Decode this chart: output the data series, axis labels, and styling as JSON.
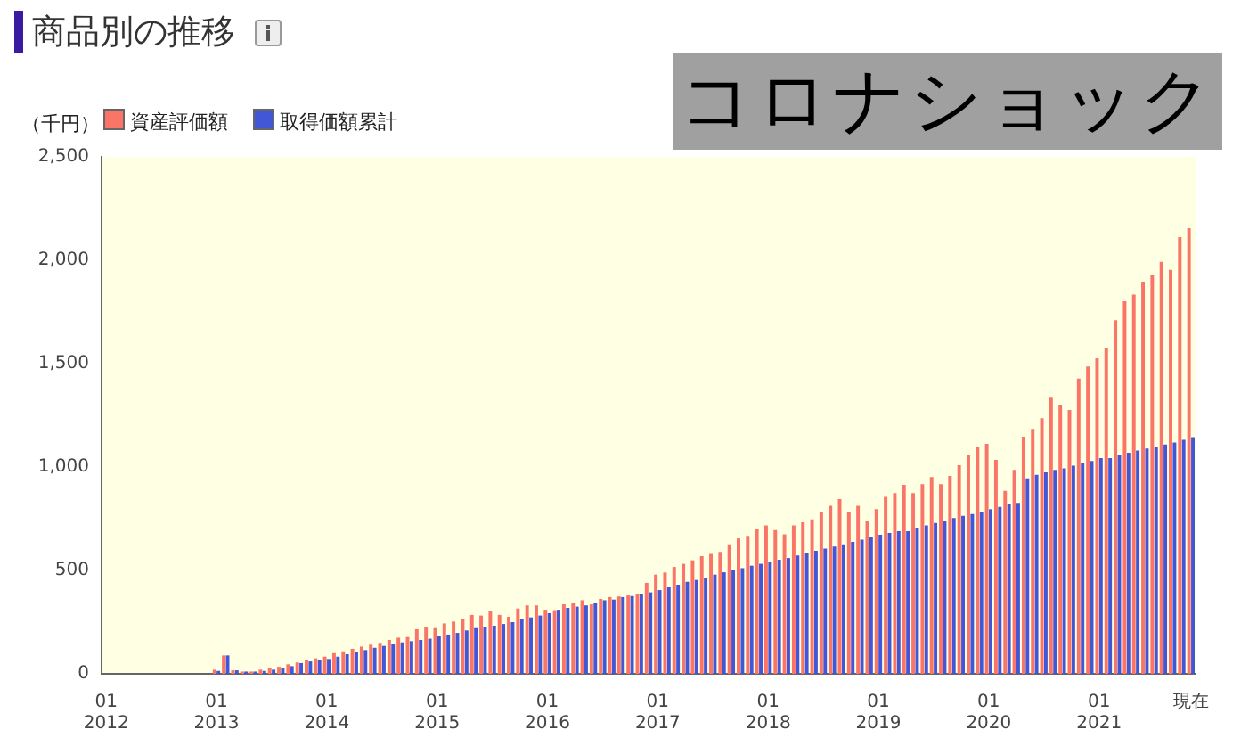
{
  "chart_data": {
    "type": "bar",
    "title": "商品別の推移",
    "ylabel": "（千円）",
    "legend": "top left",
    "grid": false,
    "annotations": [
      "コロナショック"
    ],
    "categories": [
      "01\n2012",
      null,
      null,
      null,
      null,
      null,
      null,
      null,
      null,
      null,
      null,
      null,
      "01\n2013",
      null,
      null,
      null,
      null,
      null,
      null,
      null,
      null,
      null,
      null,
      null,
      "01\n2014",
      null,
      null,
      null,
      null,
      null,
      null,
      null,
      null,
      null,
      null,
      null,
      "01\n2015",
      null,
      null,
      null,
      null,
      null,
      null,
      null,
      null,
      null,
      null,
      null,
      "01\n2016",
      null,
      null,
      null,
      null,
      null,
      null,
      null,
      null,
      null,
      null,
      null,
      "01\n2017",
      null,
      null,
      null,
      null,
      null,
      null,
      null,
      null,
      null,
      null,
      null,
      "01\n2018",
      null,
      null,
      null,
      null,
      null,
      null,
      null,
      null,
      null,
      null,
      null,
      "01\n2019",
      null,
      null,
      null,
      null,
      null,
      null,
      null,
      null,
      null,
      null,
      null,
      "01\n2020",
      null,
      null,
      null,
      null,
      null,
      null,
      null,
      null,
      null,
      null,
      null,
      "01\n2021",
      null,
      null,
      null,
      null,
      null,
      null,
      null,
      null,
      null,
      "現在"
    ],
    "ylim": [
      0,
      2500
    ],
    "yticks": [
      0,
      500,
      {
        "value": 1000,
        "label": "1,000"
      },
      {
        "value": 1500,
        "label": "1,500"
      },
      {
        "value": 2000,
        "label": "2,000"
      },
      {
        "value": 2500,
        "label": "2,500"
      }
    ],
    "series": [
      {
        "name": "資産評価額",
        "color": "#fa7468",
        "values": [
          null,
          null,
          null,
          null,
          null,
          null,
          null,
          null,
          null,
          null,
          null,
          null,
          20,
          89,
          17,
          11,
          11,
          20,
          26,
          34,
          46,
          55,
          69,
          75,
          83,
          100,
          109,
          121,
          132,
          141,
          150,
          164,
          175,
          178,
          216,
          224,
          221,
          244,
          253,
          267,
          285,
          282,
          302,
          285,
          276,
          316,
          331,
          331,
          310,
          308,
          336,
          345,
          356,
          336,
          362,
          371,
          374,
          379,
          388,
          440,
          480,
          490,
          517,
          532,
          549,
          569,
          580,
          589,
          626,
          655,
          667,
          701,
          718,
          695,
          675,
          718,
          733,
          747,
          784,
          813,
          845,
          782,
          813,
          739,
          796,
          856,
          874,
          914,
          874,
          917,
          951,
          917,
          957,
          1009,
          1057,
          1098,
          1112,
          1035,
          885,
          986,
          1147,
          1184,
          1236,
          1339,
          1302,
          1276,
          1428,
          1486,
          1526,
          1575,
          1710,
          1802,
          1834,
          1897,
          1931,
          1992,
          1954,
          2112,
          2155
        ]
      },
      {
        "name": "取得価額累計",
        "color": "#4257d8",
        "values": [
          null,
          null,
          null,
          null,
          null,
          null,
          null,
          null,
          null,
          null,
          null,
          null,
          14,
          89,
          17,
          11,
          11,
          14,
          20,
          29,
          37,
          52,
          60,
          66,
          72,
          83,
          95,
          106,
          115,
          126,
          135,
          144,
          152,
          158,
          164,
          170,
          181,
          190,
          198,
          210,
          221,
          227,
          233,
          241,
          250,
          264,
          273,
          282,
          293,
          310,
          319,
          325,
          331,
          342,
          356,
          359,
          371,
          376,
          385,
          394,
          405,
          418,
          431,
          445,
          454,
          463,
          480,
          491,
          500,
          511,
          523,
          532,
          543,
          552,
          560,
          572,
          583,
          595,
          606,
          615,
          626,
          638,
          649,
          661,
          672,
          681,
          690,
          690,
          707,
          718,
          730,
          739,
          753,
          764,
          773,
          784,
          796,
          807,
          819,
          827,
          945,
          962,
          974,
          986,
          994,
          1006,
          1017,
          1029,
          1043,
          1043,
          1057,
          1069,
          1080,
          1089,
          1098,
          1109,
          1118,
          1132,
          1144
        ]
      }
    ]
  }
}
